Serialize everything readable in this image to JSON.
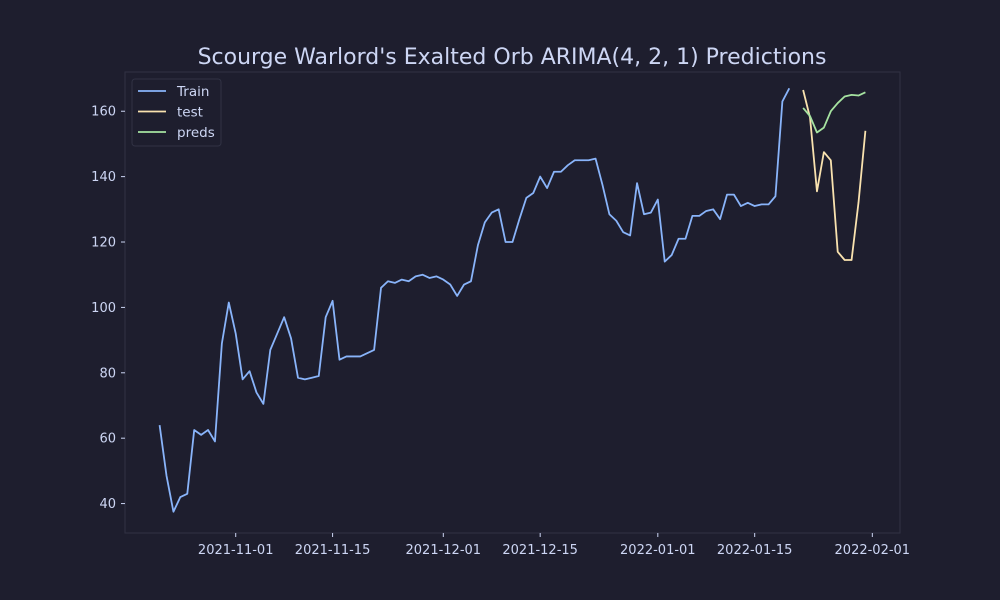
{
  "chart_data": {
    "type": "line",
    "title": "Scourge Warlord's Exalted Orb ARIMA(4, 2, 1) Predictions",
    "xlabel": "",
    "ylabel": "",
    "xlim": [
      "2021-10-16",
      "2022-02-05"
    ],
    "ylim": [
      31,
      172
    ],
    "x_ticks": [
      "2021-11-01",
      "2021-11-15",
      "2021-12-01",
      "2021-12-15",
      "2022-01-01",
      "2022-01-15",
      "2022-02-01"
    ],
    "y_ticks": [
      40,
      60,
      80,
      100,
      120,
      140,
      160
    ],
    "grid": false,
    "legend_position": "top-left",
    "colors": {
      "background": "#1e1e2e",
      "text": "#cdd6f4",
      "axes_edge": "#313244",
      "legend_bg": "#1e1e2e",
      "legend_edge": "#313244"
    },
    "series": [
      {
        "name": "Train",
        "color": "#89b4fa",
        "start_date": "2021-10-21",
        "values": [
          64,
          48.5,
          37.5,
          42,
          43,
          62.5,
          61,
          62.5,
          59,
          89,
          101.5,
          92,
          78,
          80.5,
          74,
          70.5,
          87,
          92,
          97,
          90.5,
          78.5,
          78,
          78.5,
          79,
          97,
          102,
          84,
          85,
          85,
          85,
          86,
          87,
          106,
          108,
          107.5,
          108.5,
          108,
          109.5,
          110,
          109,
          109.5,
          108.5,
          107,
          103.5,
          107,
          108,
          119,
          126,
          129,
          130,
          120,
          120,
          127,
          133.5,
          135,
          140,
          136.5,
          141.5,
          141.5,
          143.5,
          145,
          145,
          145,
          145.5,
          137.5,
          128.5,
          126.5,
          123,
          122,
          138,
          128.5,
          129,
          133,
          114,
          116,
          121,
          121,
          128,
          128,
          129.5,
          130,
          127,
          134.5,
          134.5,
          131,
          132,
          131,
          131.5,
          131.5,
          134,
          163,
          167
        ]
      },
      {
        "name": "test",
        "color": "#f9e2af",
        "start_date": "2022-01-22",
        "values": [
          166.5,
          158,
          135.5,
          147.5,
          145,
          117,
          114.5,
          114.5,
          132,
          154
        ]
      },
      {
        "name": "preds",
        "color": "#a6e3a1",
        "start_date": "2022-01-22",
        "values": [
          161,
          158.5,
          153.5,
          155,
          160,
          162.5,
          164.5,
          165,
          164.8,
          165.8
        ]
      }
    ]
  }
}
